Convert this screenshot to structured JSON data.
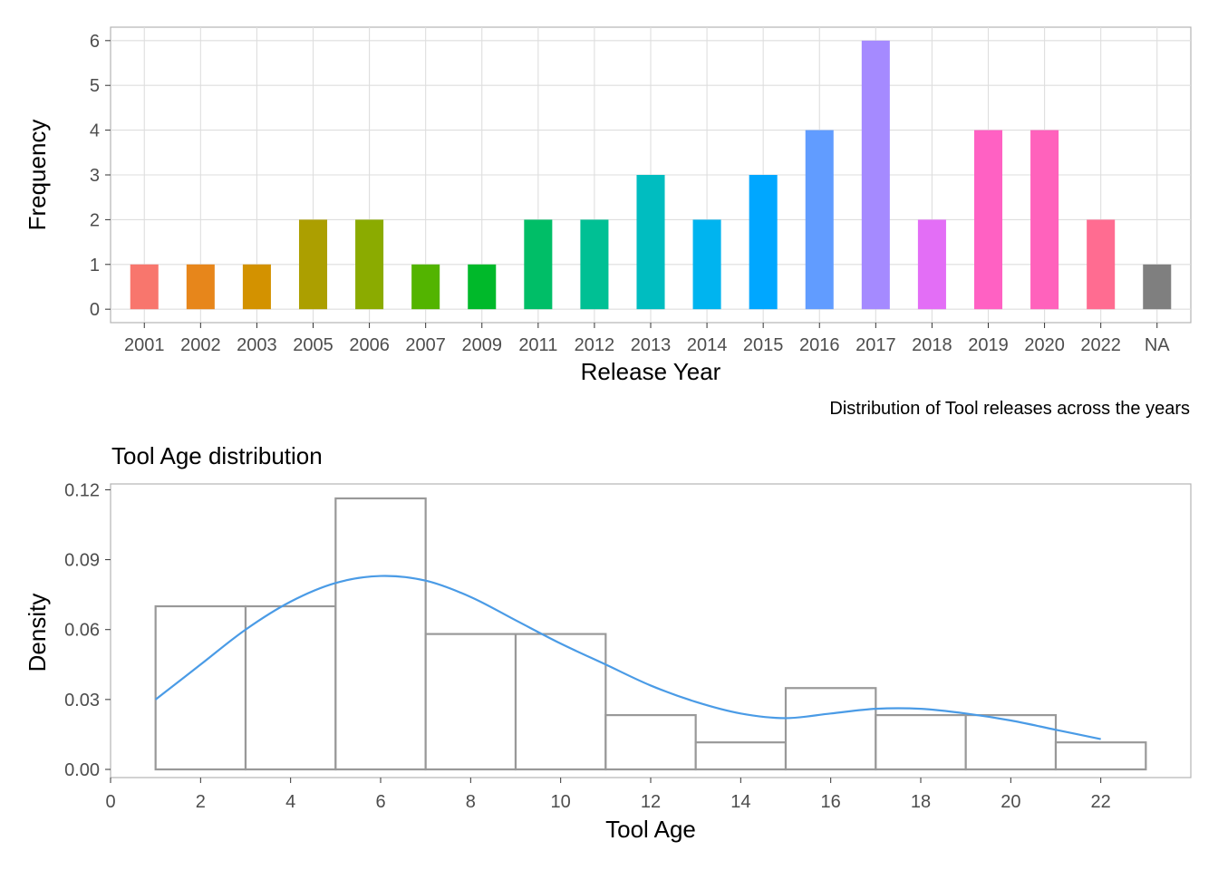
{
  "chart_data": [
    {
      "type": "bar",
      "xlabel": "Release Year",
      "ylabel": "Frequency",
      "caption": "Distribution of Tool releases across the years",
      "categories": [
        "2001",
        "2002",
        "2003",
        "2005",
        "2006",
        "2007",
        "2009",
        "2011",
        "2012",
        "2013",
        "2014",
        "2015",
        "2016",
        "2017",
        "2018",
        "2019",
        "2020",
        "2022",
        "NA"
      ],
      "values": [
        1,
        1,
        1,
        2,
        2,
        1,
        1,
        2,
        2,
        3,
        2,
        3,
        4,
        6,
        2,
        4,
        4,
        2,
        1
      ],
      "colors": [
        "#F8766D",
        "#E7861B",
        "#D39200",
        "#AC9F00",
        "#8BAB00",
        "#53B400",
        "#00B92A",
        "#00BE67",
        "#00C094",
        "#00BDC0",
        "#00B4EF",
        "#00A7FF",
        "#619CFF",
        "#A58AFF",
        "#E36EF6",
        "#FF61C3",
        "#FF62BC",
        "#FF6C91",
        "#7F7F7F"
      ],
      "ylim": [
        0,
        6
      ],
      "yticks": [
        0,
        1,
        2,
        3,
        4,
        5,
        6
      ],
      "grid": true,
      "legend": "none"
    },
    {
      "type": "histogram",
      "title": "Tool Age distribution",
      "xlabel": "Tool Age",
      "ylabel": "Density",
      "bins": [
        {
          "x0": 1,
          "x1": 3,
          "density": 0.07
        },
        {
          "x0": 3,
          "x1": 5,
          "density": 0.07
        },
        {
          "x0": 5,
          "x1": 7,
          "density": 0.1163
        },
        {
          "x0": 7,
          "x1": 9,
          "density": 0.0581
        },
        {
          "x0": 9,
          "x1": 11,
          "density": 0.0581
        },
        {
          "x0": 11,
          "x1": 13,
          "density": 0.0233
        },
        {
          "x0": 13,
          "x1": 15,
          "density": 0.0116
        },
        {
          "x0": 15,
          "x1": 17,
          "density": 0.0349
        },
        {
          "x0": 17,
          "x1": 19,
          "density": 0.0233
        },
        {
          "x0": 19,
          "x1": 21,
          "density": 0.0233
        },
        {
          "x0": 21,
          "x1": 23,
          "density": 0.0116
        }
      ],
      "density_curve": {
        "color": "#4A9BE6",
        "points": [
          [
            1,
            0.03
          ],
          [
            2,
            0.045
          ],
          [
            3,
            0.06
          ],
          [
            4,
            0.072
          ],
          [
            5,
            0.08
          ],
          [
            6,
            0.083
          ],
          [
            7,
            0.081
          ],
          [
            8,
            0.074
          ],
          [
            9,
            0.064
          ],
          [
            10,
            0.054
          ],
          [
            11,
            0.045
          ],
          [
            12,
            0.036
          ],
          [
            13,
            0.029
          ],
          [
            14,
            0.024
          ],
          [
            15,
            0.022
          ],
          [
            16,
            0.024
          ],
          [
            17,
            0.026
          ],
          [
            18,
            0.026
          ],
          [
            19,
            0.024
          ],
          [
            20,
            0.021
          ],
          [
            21,
            0.017
          ],
          [
            22,
            0.013
          ]
        ]
      },
      "xlim": [
        0,
        24
      ],
      "xticks": [
        0,
        2,
        4,
        6,
        8,
        10,
        12,
        14,
        16,
        18,
        20,
        22
      ],
      "ylim": [
        -0.0035,
        0.1225
      ],
      "yticks": [
        0.0,
        0.03,
        0.06,
        0.09,
        0.12
      ],
      "ytick_labels": [
        "0.00",
        "0.03",
        "0.06",
        "0.09",
        "0.12"
      ],
      "bar_outline_color": "#999999",
      "grid": false,
      "legend": "none"
    }
  ]
}
